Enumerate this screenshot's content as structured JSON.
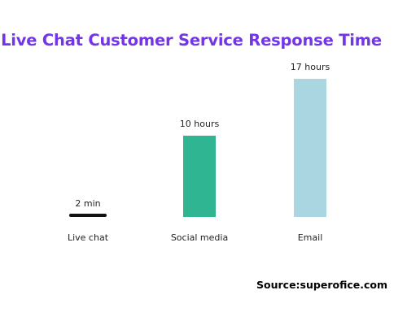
{
  "colors": {
    "title": "#7434e8",
    "bar_live_chat": "#111111",
    "bar_social_media": "#2fb592",
    "bar_email": "#a9d6e0",
    "label_text": "#222222"
  },
  "source_text": "Source:superofice.com",
  "chart_data": {
    "type": "bar",
    "title": "Live Chat Customer Service Response Time",
    "categories": [
      "Live chat",
      "Social media",
      "Email"
    ],
    "values_hours": [
      0.0333,
      10,
      17
    ],
    "data_labels": [
      "2 min",
      "10 hours",
      "17 hours"
    ],
    "xlabel": "",
    "ylabel": "",
    "ylim": [
      0,
      17
    ],
    "grid": false,
    "legend": "none"
  }
}
